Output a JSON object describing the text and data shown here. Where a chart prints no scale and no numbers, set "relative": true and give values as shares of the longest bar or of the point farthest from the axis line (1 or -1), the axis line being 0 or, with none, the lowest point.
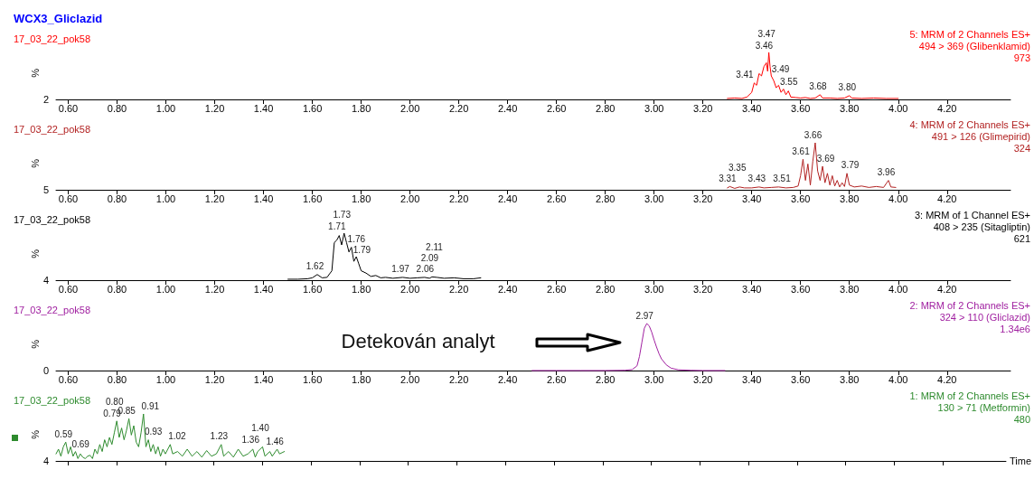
{
  "chart_data": [
    {
      "type": "line",
      "relative": true,
      "title": "WCX3_Gliclazid",
      "subtitle": "17_03_22_pok58",
      "ylabel": "%",
      "tick_labels": "x",
      "annotations": [
        "5: MRM of 2 Channels ES+",
        "494 > 369 (Glibenklamid)",
        "973",
        "2",
        {
          "text": "3.41",
          "x": 3.41,
          "y": 0.35
        },
        {
          "text": "3.46",
          "x": 3.46,
          "y": 0.78
        },
        {
          "text": "3.47",
          "x": 3.47,
          "y": 1.0
        },
        {
          "text": "3.49",
          "x": 3.49,
          "y": 0.4
        },
        {
          "text": "3.55",
          "x": 3.55,
          "y": 0.18
        },
        {
          "text": "3.68",
          "x": 3.68,
          "y": 0.1
        },
        {
          "text": "3.80",
          "x": 3.8,
          "y": 0.08
        }
      ],
      "xlim": [
        0.55,
        4.46
      ],
      "xticks": [
        {
          "value": 0.6,
          "label": "0.60"
        },
        {
          "value": 0.8,
          "label": "0.80"
        },
        {
          "value": 1,
          "label": "1.00"
        },
        {
          "value": 1.2,
          "label": "1.20"
        },
        {
          "value": 1.4,
          "label": "1.40"
        },
        {
          "value": 1.6,
          "label": "1.60"
        },
        {
          "value": 1.8,
          "label": "1.80"
        },
        {
          "value": 2,
          "label": "2.00"
        },
        {
          "value": 2.2,
          "label": "2.20"
        },
        {
          "value": 2.4,
          "label": "2.40"
        },
        {
          "value": 2.6,
          "label": "2.60"
        },
        {
          "value": 2.8,
          "label": "2.80"
        },
        {
          "value": 3,
          "label": "3.00"
        },
        {
          "value": 3.2,
          "label": "3.20"
        },
        {
          "value": 3.4,
          "label": "3.40"
        },
        {
          "value": 3.6,
          "label": "3.60"
        },
        {
          "value": 3.8,
          "label": "3.80"
        },
        {
          "value": 4,
          "label": "4.00"
        },
        {
          "value": 4.2,
          "label": "4.20"
        }
      ],
      "x": [
        3.3,
        3.33,
        3.36,
        3.38,
        3.4,
        3.41,
        3.42,
        3.43,
        3.44,
        3.45,
        3.46,
        3.465,
        3.47,
        3.475,
        3.48,
        3.49,
        3.5,
        3.51,
        3.52,
        3.53,
        3.54,
        3.55,
        3.56,
        3.58,
        3.6,
        3.62,
        3.64,
        3.66,
        3.68,
        3.69,
        3.72,
        3.75,
        3.78,
        3.8,
        3.81,
        3.85,
        3.9,
        3.95,
        4.0
      ],
      "series": [
        {
          "color": "#ff0000",
          "values": [
            0.02,
            0.03,
            0.02,
            0.05,
            0.15,
            0.35,
            0.3,
            0.55,
            0.5,
            0.7,
            0.78,
            0.6,
            1.0,
            0.7,
            0.5,
            0.4,
            0.25,
            0.3,
            0.15,
            0.22,
            0.1,
            0.18,
            0.05,
            0.04,
            0.03,
            0.04,
            0.02,
            0.03,
            0.1,
            0.03,
            0.03,
            0.02,
            0.03,
            0.08,
            0.03,
            0.02,
            0.03,
            0.02,
            0.02
          ]
        }
      ]
    },
    {
      "type": "line",
      "relative": true,
      "subtitle": "17_03_22_pok58",
      "ylabel": "%",
      "tick_labels": "x",
      "annotations": [
        "4: MRM of 2 Channels ES+",
        "491 > 126 (Glimepirid)",
        "324",
        "5",
        {
          "text": "3.31",
          "x": 3.31,
          "y": 0.07
        },
        {
          "text": "3.35",
          "x": 3.35,
          "y": 0.06
        },
        {
          "text": "3.43",
          "x": 3.43,
          "y": 0.06
        },
        {
          "text": "3.51",
          "x": 3.51,
          "y": 0.06
        },
        {
          "text": "3.61",
          "x": 3.61,
          "y": 0.65
        },
        {
          "text": "3.66",
          "x": 3.66,
          "y": 1.0
        },
        {
          "text": "3.69",
          "x": 3.69,
          "y": 0.5
        },
        {
          "text": "3.79",
          "x": 3.79,
          "y": 0.35
        },
        {
          "text": "3.96",
          "x": 3.96,
          "y": 0.2
        }
      ],
      "xlim": [
        0.55,
        4.46
      ],
      "xticks": [
        {
          "value": 0.6,
          "label": "0.60"
        },
        {
          "value": 0.8,
          "label": "0.80"
        },
        {
          "value": 1,
          "label": "1.00"
        },
        {
          "value": 1.2,
          "label": "1.20"
        },
        {
          "value": 1.4,
          "label": "1.40"
        },
        {
          "value": 1.6,
          "label": "1.60"
        },
        {
          "value": 1.8,
          "label": "1.80"
        },
        {
          "value": 2,
          "label": "2.00"
        },
        {
          "value": 2.2,
          "label": "2.20"
        },
        {
          "value": 2.4,
          "label": "2.40"
        },
        {
          "value": 2.6,
          "label": "2.60"
        },
        {
          "value": 2.8,
          "label": "2.80"
        },
        {
          "value": 3,
          "label": "3.00"
        },
        {
          "value": 3.2,
          "label": "3.20"
        },
        {
          "value": 3.4,
          "label": "3.40"
        },
        {
          "value": 3.6,
          "label": "3.60"
        },
        {
          "value": 3.8,
          "label": "3.80"
        },
        {
          "value": 4,
          "label": "4.00"
        },
        {
          "value": 4.2,
          "label": "4.20"
        }
      ],
      "x": [
        3.3,
        3.31,
        3.33,
        3.35,
        3.37,
        3.4,
        3.43,
        3.45,
        3.48,
        3.51,
        3.54,
        3.57,
        3.59,
        3.6,
        3.61,
        3.62,
        3.63,
        3.64,
        3.65,
        3.66,
        3.67,
        3.68,
        3.69,
        3.7,
        3.71,
        3.72,
        3.73,
        3.74,
        3.75,
        3.76,
        3.77,
        3.78,
        3.79,
        3.8,
        3.82,
        3.85,
        3.88,
        3.91,
        3.94,
        3.96,
        3.97,
        3.99
      ],
      "series": [
        {
          "color": "#b22222",
          "values": [
            0.04,
            0.07,
            0.03,
            0.06,
            0.04,
            0.04,
            0.06,
            0.04,
            0.05,
            0.06,
            0.04,
            0.05,
            0.08,
            0.3,
            0.65,
            0.2,
            0.55,
            0.1,
            0.6,
            1.0,
            0.4,
            0.2,
            0.5,
            0.15,
            0.35,
            0.1,
            0.3,
            0.08,
            0.2,
            0.06,
            0.15,
            0.07,
            0.35,
            0.1,
            0.06,
            0.08,
            0.05,
            0.07,
            0.05,
            0.2,
            0.06,
            0.05
          ]
        }
      ]
    },
    {
      "type": "line",
      "relative": true,
      "subtitle": "17_03_22_pok58",
      "ylabel": "%",
      "tick_labels": "x",
      "annotations": [
        "3: MRM of 1 Channel ES+",
        "408 > 235 (Sitagliptin)",
        "621",
        "4",
        {
          "text": "1.62",
          "x": 1.62,
          "y": 0.12
        },
        {
          "text": "1.71",
          "x": 1.71,
          "y": 0.95
        },
        {
          "text": "1.73",
          "x": 1.73,
          "y": 1.0
        },
        {
          "text": "1.76",
          "x": 1.76,
          "y": 0.7
        },
        {
          "text": "1.79",
          "x": 1.79,
          "y": 0.35
        },
        {
          "text": "1.97",
          "x": 1.97,
          "y": 0.06
        },
        {
          "text": "2.06",
          "x": 2.06,
          "y": 0.06
        },
        {
          "text": "2.09",
          "x": 2.09,
          "y": 0.07
        },
        {
          "text": "2.11",
          "x": 2.11,
          "y": 0.06
        }
      ],
      "xlim": [
        0.55,
        4.46
      ],
      "xticks": [
        {
          "value": 0.6,
          "label": "0.60"
        },
        {
          "value": 0.8,
          "label": "0.80"
        },
        {
          "value": 1,
          "label": "1.00"
        },
        {
          "value": 1.2,
          "label": "1.20"
        },
        {
          "value": 1.4,
          "label": "1.40"
        },
        {
          "value": 1.6,
          "label": "1.60"
        },
        {
          "value": 1.8,
          "label": "1.80"
        },
        {
          "value": 2,
          "label": "2.00"
        },
        {
          "value": 2.2,
          "label": "2.20"
        },
        {
          "value": 2.4,
          "label": "2.40"
        },
        {
          "value": 2.6,
          "label": "2.60"
        },
        {
          "value": 2.8,
          "label": "2.80"
        },
        {
          "value": 3,
          "label": "3.00"
        },
        {
          "value": 3.2,
          "label": "3.20"
        },
        {
          "value": 3.4,
          "label": "3.40"
        },
        {
          "value": 3.6,
          "label": "3.60"
        },
        {
          "value": 3.8,
          "label": "3.80"
        },
        {
          "value": 4,
          "label": "4.00"
        },
        {
          "value": 4.2,
          "label": "4.20"
        }
      ],
      "x": [
        1.5,
        1.54,
        1.58,
        1.6,
        1.62,
        1.64,
        1.66,
        1.68,
        1.69,
        1.7,
        1.71,
        1.72,
        1.73,
        1.74,
        1.75,
        1.76,
        1.77,
        1.78,
        1.79,
        1.8,
        1.82,
        1.84,
        1.86,
        1.88,
        1.9,
        1.93,
        1.97,
        2.0,
        2.03,
        2.06,
        2.08,
        2.09,
        2.11,
        2.14,
        2.18,
        2.22,
        2.26,
        2.29
      ],
      "series": [
        {
          "color": "#000000",
          "values": [
            0.02,
            0.02,
            0.03,
            0.05,
            0.12,
            0.05,
            0.06,
            0.2,
            0.8,
            0.85,
            0.95,
            0.75,
            1.0,
            0.8,
            0.6,
            0.7,
            0.4,
            0.5,
            0.35,
            0.2,
            0.15,
            0.08,
            0.1,
            0.05,
            0.06,
            0.04,
            0.06,
            0.04,
            0.05,
            0.06,
            0.04,
            0.07,
            0.06,
            0.04,
            0.05,
            0.03,
            0.03,
            0.05
          ]
        }
      ]
    },
    {
      "type": "line",
      "relative": true,
      "subtitle": "17_03_22_pok58",
      "ylabel": "%",
      "tick_labels": "x",
      "annotations": [
        "2: MRM of 2 Channels ES+",
        "324 > 110 (Gliclazid)",
        "1.34e6",
        "0",
        "Detekován analyt",
        {
          "text": "2.97",
          "x": 2.97,
          "y": 1.0
        }
      ],
      "xlim": [
        0.55,
        4.46
      ],
      "xticks": [
        {
          "value": 0.6,
          "label": "0.60"
        },
        {
          "value": 0.8,
          "label": "0.80"
        },
        {
          "value": 1,
          "label": "1.00"
        },
        {
          "value": 1.2,
          "label": "1.20"
        },
        {
          "value": 1.4,
          "label": "1.40"
        },
        {
          "value": 1.6,
          "label": "1.60"
        },
        {
          "value": 1.8,
          "label": "1.80"
        },
        {
          "value": 2,
          "label": "2.00"
        },
        {
          "value": 2.2,
          "label": "2.20"
        },
        {
          "value": 2.4,
          "label": "2.40"
        },
        {
          "value": 2.6,
          "label": "2.60"
        },
        {
          "value": 2.8,
          "label": "2.80"
        },
        {
          "value": 3,
          "label": "3.00"
        },
        {
          "value": 3.2,
          "label": "3.20"
        },
        {
          "value": 3.4,
          "label": "3.40"
        },
        {
          "value": 3.6,
          "label": "3.60"
        },
        {
          "value": 3.8,
          "label": "3.80"
        },
        {
          "value": 4,
          "label": "4.00"
        },
        {
          "value": 4.2,
          "label": "4.20"
        }
      ],
      "x": [
        2.5,
        2.6,
        2.7,
        2.8,
        2.88,
        2.91,
        2.93,
        2.94,
        2.95,
        2.96,
        2.97,
        2.98,
        2.99,
        3.0,
        3.01,
        3.02,
        3.03,
        3.05,
        3.07,
        3.1,
        3.15,
        3.2,
        3.29
      ],
      "series": [
        {
          "color": "#a020a0",
          "values": [
            0,
            0,
            0,
            0,
            0.005,
            0.02,
            0.1,
            0.3,
            0.6,
            0.9,
            1.0,
            0.95,
            0.82,
            0.65,
            0.5,
            0.36,
            0.25,
            0.12,
            0.05,
            0.015,
            0.005,
            0,
            0
          ]
        }
      ]
    },
    {
      "type": "line",
      "relative": true,
      "subtitle": "17_03_22_pok58",
      "ylabel": "%",
      "xlabel": "Time",
      "tick_labels": false,
      "annotations": [
        "1: MRM of 2 Channels ES+",
        "130 > 71 (Metformin)",
        "480",
        "4",
        {
          "text": "0.59",
          "x": 0.59,
          "y": 0.4
        },
        {
          "text": "0.69",
          "x": 0.69,
          "y": 0.12
        },
        {
          "text": "0.79",
          "x": 0.79,
          "y": 0.6
        },
        {
          "text": "0.80",
          "x": 0.8,
          "y": 0.85
        },
        {
          "text": "0.85",
          "x": 0.85,
          "y": 0.9
        },
        {
          "text": "0.91",
          "x": 0.91,
          "y": 1.0
        },
        {
          "text": "0.93",
          "x": 0.93,
          "y": 0.45
        },
        {
          "text": "1.02",
          "x": 1.02,
          "y": 0.35
        },
        {
          "text": "1.23",
          "x": 1.23,
          "y": 0.35
        },
        {
          "text": "1.36",
          "x": 1.36,
          "y": 0.25
        },
        {
          "text": "1.40",
          "x": 1.4,
          "y": 0.3
        },
        {
          "text": "1.46",
          "x": 1.46,
          "y": 0.25
        }
      ],
      "xlim": [
        0.55,
        4.46
      ],
      "xticks": [
        {
          "value": 0.6,
          "label": null
        },
        {
          "value": 0.8,
          "label": null
        },
        {
          "value": 1,
          "label": null
        },
        {
          "value": 1.2,
          "label": null
        },
        {
          "value": 1.4,
          "label": null
        },
        {
          "value": 1.6,
          "label": null
        },
        {
          "value": 1.8,
          "label": null
        },
        {
          "value": 2,
          "label": null
        },
        {
          "value": 2.2,
          "label": null
        },
        {
          "value": 2.4,
          "label": null
        },
        {
          "value": 2.6,
          "label": null
        },
        {
          "value": 2.8,
          "label": null
        },
        {
          "value": 3,
          "label": null
        },
        {
          "value": 3.2,
          "label": null
        },
        {
          "value": 3.4,
          "label": null
        },
        {
          "value": 3.6,
          "label": null
        },
        {
          "value": 3.8,
          "label": null
        },
        {
          "value": 4,
          "label": null
        },
        {
          "value": 4.2,
          "label": null
        }
      ],
      "x": [
        0.55,
        0.56,
        0.57,
        0.58,
        0.59,
        0.6,
        0.61,
        0.62,
        0.63,
        0.64,
        0.65,
        0.66,
        0.67,
        0.68,
        0.69,
        0.7,
        0.71,
        0.72,
        0.73,
        0.74,
        0.75,
        0.76,
        0.77,
        0.78,
        0.79,
        0.8,
        0.81,
        0.82,
        0.83,
        0.84,
        0.85,
        0.86,
        0.87,
        0.88,
        0.89,
        0.9,
        0.91,
        0.92,
        0.93,
        0.94,
        0.95,
        0.96,
        0.97,
        0.98,
        0.99,
        1.0,
        1.02,
        1.03,
        1.05,
        1.07,
        1.09,
        1.11,
        1.13,
        1.15,
        1.17,
        1.19,
        1.21,
        1.23,
        1.24,
        1.26,
        1.28,
        1.3,
        1.32,
        1.34,
        1.36,
        1.37,
        1.38,
        1.4,
        1.41,
        1.43,
        1.44,
        1.46,
        1.47,
        1.49
      ],
      "series": [
        {
          "color": "#2e8b2e",
          "values": [
            0.15,
            0.25,
            0.1,
            0.3,
            0.4,
            0.15,
            0.3,
            0.1,
            0.2,
            0.05,
            0.15,
            0.08,
            0.05,
            0.1,
            0.12,
            0.05,
            0.25,
            0.15,
            0.35,
            0.2,
            0.45,
            0.3,
            0.5,
            0.35,
            0.6,
            0.85,
            0.5,
            0.7,
            0.45,
            0.65,
            0.9,
            0.55,
            0.75,
            0.4,
            0.3,
            0.6,
            1.0,
            0.3,
            0.45,
            0.2,
            0.35,
            0.15,
            0.3,
            0.1,
            0.25,
            0.15,
            0.35,
            0.15,
            0.2,
            0.1,
            0.25,
            0.1,
            0.2,
            0.08,
            0.22,
            0.1,
            0.15,
            0.35,
            0.1,
            0.2,
            0.08,
            0.25,
            0.1,
            0.15,
            0.25,
            0.08,
            0.2,
            0.3,
            0.1,
            0.2,
            0.1,
            0.25,
            0.15,
            0.2
          ]
        }
      ]
    }
  ]
}
